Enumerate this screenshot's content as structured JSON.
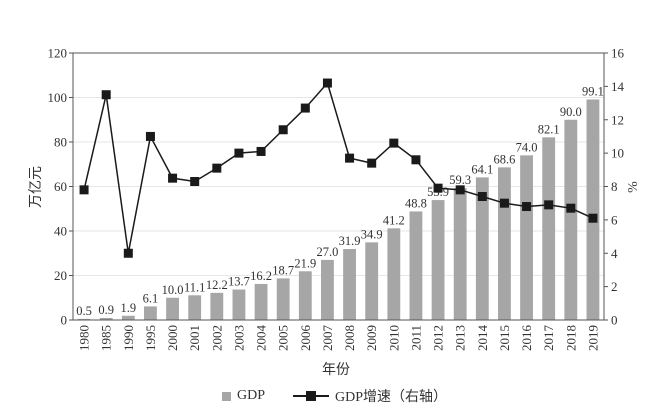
{
  "chart_data": {
    "type": "bar+line",
    "title": "",
    "xlabel": "年份",
    "ylabel": "万亿元",
    "ylabel_right": "%",
    "categories": [
      "1980",
      "1985",
      "1990",
      "1995",
      "2000",
      "2001",
      "2002",
      "2003",
      "2004",
      "2005",
      "2006",
      "2007",
      "2008",
      "2009",
      "2010",
      "2011",
      "2012",
      "2013",
      "2014",
      "2015",
      "2016",
      "2017",
      "2018",
      "2019"
    ],
    "series": [
      {
        "name": "GDP",
        "type": "bar",
        "axis": "left",
        "color": "#a6a6a6",
        "values": [
          0.5,
          0.9,
          1.9,
          6.1,
          10.0,
          11.1,
          12.2,
          13.7,
          16.2,
          18.7,
          21.9,
          27.0,
          31.9,
          34.9,
          41.2,
          48.8,
          53.9,
          59.3,
          64.1,
          68.6,
          74.0,
          82.1,
          90.0,
          99.1
        ],
        "labels": [
          "0.5",
          "0.9",
          "1.9",
          "6.1",
          "10.0",
          "11.1",
          "12.2",
          "13.7",
          "16.2",
          "18.7",
          "21.9",
          "27.0",
          "31.9",
          "34.9",
          "41.2",
          "48.8",
          "53.9",
          "59.3",
          "64.1",
          "68.6",
          "74.0",
          "82.1",
          "90.0",
          "99.1"
        ]
      },
      {
        "name": "GDP增速（右轴）",
        "type": "line",
        "axis": "right",
        "color": "#1a1a1a",
        "marker": "square",
        "values": [
          7.8,
          13.5,
          4.0,
          11.0,
          8.5,
          8.3,
          9.1,
          10.0,
          10.1,
          11.4,
          12.7,
          14.2,
          9.7,
          9.4,
          10.6,
          9.6,
          7.9,
          7.8,
          7.4,
          7.0,
          6.8,
          6.9,
          6.7,
          6.1
        ]
      }
    ],
    "ylim": [
      0,
      120
    ],
    "yticks": [
      "0",
      "20",
      "40",
      "60",
      "80",
      "100",
      "120"
    ],
    "ylim_right": [
      0,
      16
    ],
    "yticks_right": [
      "0",
      "2",
      "4",
      "6",
      "8",
      "10",
      "12",
      "14",
      "16"
    ],
    "grid": true,
    "legend": {
      "position": "bottom",
      "items": [
        "GDP",
        "GDP增速（右轴）"
      ]
    }
  }
}
